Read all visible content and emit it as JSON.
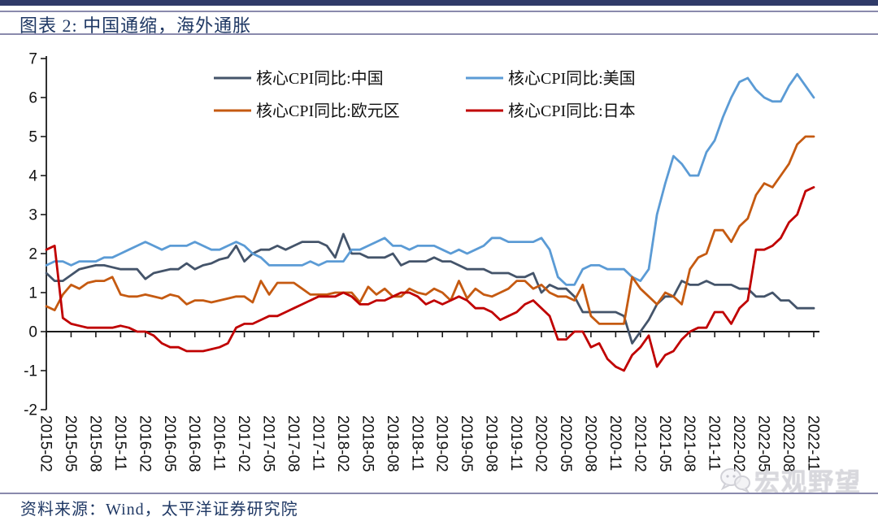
{
  "header": {
    "title": "图表 2:  中国通缩，海外通胀"
  },
  "footer": {
    "source": "资料来源：Wind，太平洋证券研究院"
  },
  "watermark": {
    "text": "宏观野望",
    "icon": "wechat-chat-bubbles"
  },
  "colors": {
    "accent_bar": "#2f3a68",
    "rule_line": "#8a8aad",
    "title_text": "#1f3864",
    "axis": "#1a1a1a"
  },
  "chart_data": {
    "type": "line",
    "title": "",
    "xlabel": "",
    "ylabel": "",
    "frequency": "monthly",
    "x_start": "2015-02",
    "x_end": "2022-11",
    "ylim": [
      -2,
      7
    ],
    "y_ticks": [
      7,
      6,
      5,
      4,
      3,
      2,
      1,
      0,
      -1,
      -2
    ],
    "grid": false,
    "legend_position": "top-inside",
    "x_tick_step_months": 3,
    "x_tick_labels": [
      "2015-02",
      "2015-05",
      "2015-08",
      "2015-11",
      "2016-02",
      "2016-05",
      "2016-08",
      "2016-11",
      "2017-02",
      "2017-05",
      "2017-08",
      "2017-11",
      "2018-02",
      "2018-05",
      "2018-08",
      "2018-11",
      "2019-02",
      "2019-05",
      "2019-08",
      "2019-11",
      "2020-02",
      "2020-05",
      "2020-08",
      "2020-11",
      "2021-02",
      "2021-05",
      "2021-08",
      "2021-11",
      "2022-02",
      "2022-05",
      "2022-08",
      "2022-11"
    ],
    "series": [
      {
        "id": "china",
        "name": "核心CPI同比:中国",
        "color": "#44546a",
        "values": [
          1.5,
          1.3,
          1.3,
          1.45,
          1.6,
          1.65,
          1.7,
          1.7,
          1.65,
          1.6,
          1.6,
          1.6,
          1.35,
          1.5,
          1.55,
          1.6,
          1.6,
          1.75,
          1.6,
          1.7,
          1.75,
          1.85,
          1.9,
          2.2,
          1.8,
          2.0,
          2.1,
          2.1,
          2.2,
          2.1,
          2.2,
          2.3,
          2.3,
          2.3,
          2.2,
          1.9,
          2.5,
          2.0,
          2.0,
          1.9,
          1.9,
          1.9,
          2.0,
          1.7,
          1.8,
          1.8,
          1.8,
          1.9,
          1.8,
          1.8,
          1.7,
          1.6,
          1.6,
          1.6,
          1.5,
          1.5,
          1.5,
          1.4,
          1.4,
          1.5,
          1.0,
          1.2,
          1.1,
          1.1,
          0.9,
          0.5,
          0.5,
          0.5,
          0.5,
          0.5,
          0.4,
          -0.3,
          0.0,
          0.3,
          0.7,
          0.9,
          0.9,
          1.3,
          1.2,
          1.2,
          1.3,
          1.2,
          1.2,
          1.2,
          1.1,
          1.1,
          0.9,
          0.9,
          1.0,
          0.8,
          0.8,
          0.6,
          0.6,
          0.6
        ]
      },
      {
        "id": "us",
        "name": "核心CPI同比:美国",
        "color": "#5b9bd5",
        "values": [
          1.7,
          1.8,
          1.8,
          1.7,
          1.8,
          1.8,
          1.8,
          1.9,
          1.9,
          2.0,
          2.1,
          2.2,
          2.3,
          2.2,
          2.1,
          2.2,
          2.2,
          2.2,
          2.3,
          2.2,
          2.1,
          2.1,
          2.2,
          2.3,
          2.2,
          2.0,
          1.9,
          1.7,
          1.7,
          1.7,
          1.7,
          1.7,
          1.8,
          1.7,
          1.8,
          1.8,
          1.8,
          2.1,
          2.1,
          2.2,
          2.3,
          2.4,
          2.2,
          2.2,
          2.1,
          2.2,
          2.2,
          2.2,
          2.1,
          2.0,
          2.1,
          2.0,
          2.1,
          2.2,
          2.4,
          2.4,
          2.3,
          2.3,
          2.3,
          2.3,
          2.4,
          2.1,
          1.4,
          1.2,
          1.2,
          1.6,
          1.7,
          1.7,
          1.6,
          1.6,
          1.6,
          1.4,
          1.3,
          1.6,
          3.0,
          3.8,
          4.5,
          4.3,
          4.0,
          4.0,
          4.6,
          4.9,
          5.5,
          6.0,
          6.4,
          6.5,
          6.2,
          6.0,
          5.9,
          5.9,
          6.3,
          6.6,
          6.3,
          6.0
        ]
      },
      {
        "id": "eurozone",
        "name": "核心CPI同比:欧元区",
        "color": "#c55a11",
        "values": [
          0.65,
          0.55,
          0.95,
          1.2,
          1.1,
          1.25,
          1.3,
          1.3,
          1.4,
          0.95,
          0.9,
          0.9,
          0.95,
          0.9,
          0.85,
          0.95,
          0.9,
          0.7,
          0.8,
          0.8,
          0.75,
          0.8,
          0.85,
          0.9,
          0.9,
          0.75,
          1.3,
          0.95,
          1.25,
          1.25,
          1.25,
          1.1,
          0.95,
          0.95,
          0.95,
          1.0,
          1.0,
          1.0,
          0.75,
          1.15,
          0.95,
          1.1,
          0.9,
          0.9,
          1.1,
          1.0,
          0.95,
          1.1,
          1.0,
          0.8,
          1.3,
          0.85,
          1.1,
          0.95,
          0.9,
          1.0,
          1.1,
          1.3,
          1.3,
          1.1,
          1.2,
          1.0,
          0.9,
          0.9,
          0.8,
          1.2,
          0.4,
          0.2,
          0.2,
          0.2,
          0.2,
          1.4,
          1.1,
          0.9,
          0.7,
          1.0,
          0.9,
          0.7,
          1.6,
          1.9,
          2.0,
          2.6,
          2.6,
          2.3,
          2.7,
          2.9,
          3.5,
          3.8,
          3.7,
          4.0,
          4.3,
          4.8,
          5.0,
          5.0
        ]
      },
      {
        "id": "japan",
        "name": "核心CPI同比:日本",
        "color": "#c00000",
        "values": [
          2.1,
          2.2,
          0.35,
          0.2,
          0.15,
          0.1,
          0.1,
          0.1,
          0.1,
          0.15,
          0.1,
          0.0,
          0.0,
          -0.1,
          -0.3,
          -0.4,
          -0.4,
          -0.5,
          -0.5,
          -0.5,
          -0.45,
          -0.4,
          -0.3,
          0.1,
          0.2,
          0.2,
          0.3,
          0.4,
          0.4,
          0.5,
          0.6,
          0.7,
          0.8,
          0.9,
          0.9,
          0.9,
          1.0,
          0.9,
          0.7,
          0.7,
          0.8,
          0.8,
          0.9,
          1.0,
          1.0,
          0.9,
          0.7,
          0.8,
          0.7,
          0.8,
          0.9,
          0.8,
          0.6,
          0.6,
          0.5,
          0.3,
          0.4,
          0.5,
          0.7,
          0.8,
          0.6,
          0.4,
          -0.2,
          -0.2,
          0.0,
          0.0,
          -0.4,
          -0.3,
          -0.7,
          -0.9,
          -1.0,
          -0.6,
          -0.4,
          -0.1,
          -0.9,
          -0.6,
          -0.5,
          -0.2,
          0.0,
          0.1,
          0.1,
          0.5,
          0.5,
          0.2,
          0.6,
          0.8,
          2.1,
          2.1,
          2.2,
          2.4,
          2.8,
          3.0,
          3.6,
          3.7
        ]
      }
    ]
  }
}
